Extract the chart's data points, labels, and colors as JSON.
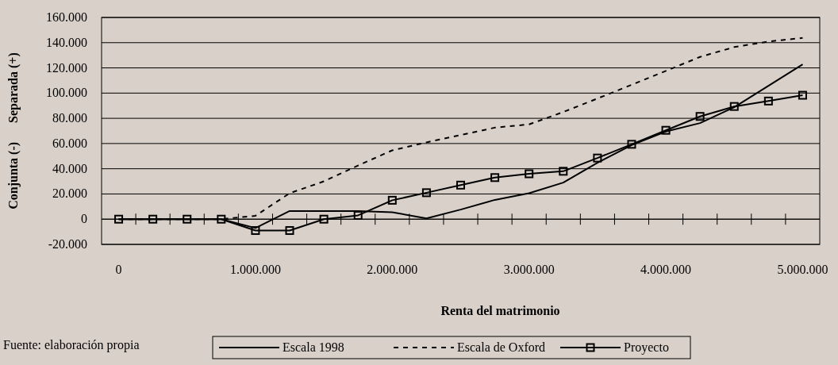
{
  "chart_data": {
    "type": "line",
    "xlabel": "Renta del matrimonio",
    "ylabel": "Conjunta (-)      Separada (+)",
    "x": [
      0,
      250000,
      500000,
      750000,
      1000000,
      1250000,
      1500000,
      1750000,
      2000000,
      2250000,
      2500000,
      2750000,
      3000000,
      3250000,
      3500000,
      3750000,
      4000000,
      4250000,
      4500000,
      4750000,
      5000000
    ],
    "series": [
      {
        "name": "Escala 1998",
        "color": "#000000",
        "line_style": "solid",
        "marker": "none",
        "values": [
          0,
          0,
          0,
          0,
          -7000,
          6500,
          6500,
          6500,
          5500,
          600,
          7600,
          15300,
          20600,
          29000,
          44700,
          58800,
          69500,
          76200,
          88800,
          105800,
          122800
        ]
      },
      {
        "name": "Escala de Oxford",
        "color": "#000000",
        "line_style": "dashed",
        "marker": "none",
        "values": [
          0,
          0,
          0,
          0,
          2700,
          20600,
          30000,
          42600,
          54600,
          60900,
          66800,
          72600,
          75200,
          85000,
          95700,
          106600,
          117600,
          128700,
          136500,
          140900,
          143800
        ]
      },
      {
        "name": "Proyecto",
        "color": "#000000",
        "line_style": "solid",
        "marker": "square",
        "values": [
          0,
          0,
          0,
          0,
          -9000,
          -9000,
          0,
          3000,
          15000,
          21000,
          27000,
          33000,
          36000,
          38000,
          48500,
          59400,
          70500,
          81500,
          89400,
          93700,
          98300
        ]
      }
    ],
    "xlim": [
      -125000,
      5125000
    ],
    "xticks": [
      0,
      {
        "value": 125000,
        "label": null
      },
      {
        "value": 375000,
        "label": null
      },
      {
        "value": 625000,
        "label": null
      },
      {
        "value": 875000,
        "label": null
      },
      {
        "value": 1000000,
        "label": "1.000.000"
      },
      {
        "value": 1125000,
        "label": null
      },
      {
        "value": 1375000,
        "label": null
      },
      {
        "value": 1625000,
        "label": null
      },
      {
        "value": 1875000,
        "label": null
      },
      {
        "value": 2000000,
        "label": "2.000.000"
      },
      {
        "value": 2125000,
        "label": null
      },
      {
        "value": 2375000,
        "label": null
      },
      {
        "value": 2625000,
        "label": null
      },
      {
        "value": 2875000,
        "label": null
      },
      {
        "value": 3000000,
        "label": "3.000.000"
      },
      {
        "value": 3125000,
        "label": null
      },
      {
        "value": 3375000,
        "label": null
      },
      {
        "value": 3625000,
        "label": null
      },
      {
        "value": 3875000,
        "label": null
      },
      {
        "value": 4000000,
        "label": "4.000.000"
      },
      {
        "value": 4125000,
        "label": null
      },
      {
        "value": 4375000,
        "label": null
      },
      {
        "value": 4625000,
        "label": null
      },
      {
        "value": 4875000,
        "label": null
      },
      {
        "value": 5000000,
        "label": "5.000.000"
      }
    ],
    "ylim": [
      -20000,
      160000
    ],
    "yticks": [
      {
        "value": -20000,
        "label": "-20.000"
      },
      0,
      {
        "value": 20000,
        "label": "20.000"
      },
      {
        "value": 40000,
        "label": "40.000"
      },
      {
        "value": 60000,
        "label": "60.000"
      },
      {
        "value": 80000,
        "label": "80.000"
      },
      {
        "value": 100000,
        "label": "100.000"
      },
      {
        "value": 120000,
        "label": "120.000"
      },
      {
        "value": 140000,
        "label": "140.000"
      },
      {
        "value": 160000,
        "label": "160.000"
      }
    ],
    "grid": "y",
    "legend": "bottom",
    "annotations": [
      "Fuente: elaboración propia"
    ]
  }
}
